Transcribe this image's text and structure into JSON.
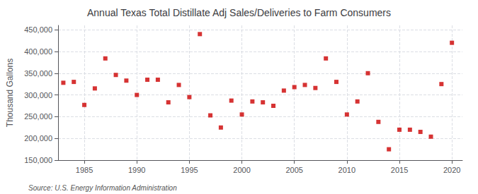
{
  "chart_data": {
    "type": "scatter",
    "title": "Annual Texas Total Distillate Adj Sales/Deliveries to Farm Consumers",
    "ylabel": "Thousand Gallons",
    "annotation": "Source: U.S. Energy Information Administration",
    "x": [
      1983,
      1984,
      1985,
      1986,
      1987,
      1988,
      1989,
      1990,
      1991,
      1992,
      1993,
      1994,
      1995,
      1996,
      1997,
      1998,
      1999,
      2000,
      2001,
      2002,
      2003,
      2004,
      2005,
      2006,
      2007,
      2008,
      2009,
      2010,
      2011,
      2012,
      2013,
      2014,
      2015,
      2016,
      2017,
      2018,
      2019,
      2020
    ],
    "values": [
      328000,
      330000,
      277000,
      315000,
      384000,
      346000,
      333000,
      300000,
      335000,
      335000,
      283000,
      323000,
      295000,
      440000,
      253000,
      225000,
      287000,
      255000,
      285000,
      283000,
      275000,
      310000,
      318000,
      323000,
      316000,
      384000,
      330000,
      255000,
      285000,
      350000,
      238000,
      175000,
      220000,
      220000,
      215000,
      204000,
      325000,
      420000
    ],
    "color": "#cc0000",
    "marker": "square",
    "xlim": [
      1982.5,
      2021
    ],
    "xticks": [
      1985,
      1990,
      1995,
      2000,
      2005,
      2010,
      2015,
      2020
    ],
    "ylim": [
      150000,
      460000
    ],
    "yticks": [
      {
        "value": 150000,
        "label": "150,000"
      },
      {
        "value": 200000,
        "label": "200,000"
      },
      {
        "value": 250000,
        "label": "250,000"
      },
      {
        "value": 300000,
        "label": "300,000"
      },
      {
        "value": 350000,
        "label": "350,000"
      },
      {
        "value": 400000,
        "label": "400,000"
      },
      {
        "value": 450000,
        "label": "450,000"
      }
    ],
    "grid": true
  }
}
